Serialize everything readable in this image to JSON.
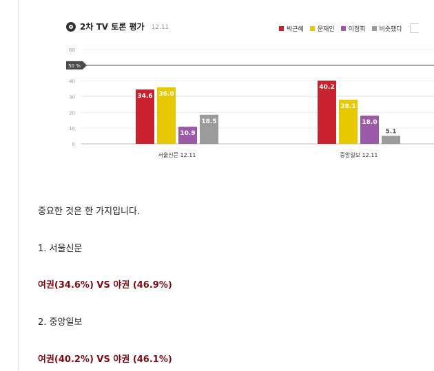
{
  "chart": {
    "title": "2차 TV 토론 평가",
    "date": "12.11",
    "legend": [
      {
        "name": "박근혜",
        "color": "#c9222f"
      },
      {
        "name": "문재인",
        "color": "#e8c800"
      },
      {
        "name": "이정희",
        "color": "#9a5aa8"
      },
      {
        "name": "비슷했다",
        "color": "#9b9b9b"
      }
    ],
    "reference_label": "50 %"
  },
  "chart_data": {
    "type": "bar",
    "title": "2차 TV 토론 평가",
    "categories": [
      "서울신문 12.11",
      "중앙일보 12.11"
    ],
    "series": [
      {
        "name": "박근혜",
        "values": [
          34.6,
          40.2
        ],
        "color": "#c9222f"
      },
      {
        "name": "문재인",
        "values": [
          36.0,
          28.1
        ],
        "color": "#e8c800"
      },
      {
        "name": "이정희",
        "values": [
          10.9,
          18.0
        ],
        "color": "#9a5aa8"
      },
      {
        "name": "비슷했다",
        "values": [
          18.5,
          5.1
        ],
        "color": "#9b9b9b"
      }
    ],
    "yticks": [
      0,
      10,
      20,
      30,
      40,
      60
    ],
    "ylim": [
      0,
      60
    ],
    "reference_line": 50,
    "grid": true
  },
  "article": {
    "intro": "중요한 것은 한 가지입니다.",
    "item1_title": "1. 서울신문",
    "item1_result": "여권(34.6%) VS 야권 (46.9%)",
    "item2_title": "2. 중앙일보",
    "item2_result": "여권(40.2%) VS 야권 (46.1%)"
  }
}
